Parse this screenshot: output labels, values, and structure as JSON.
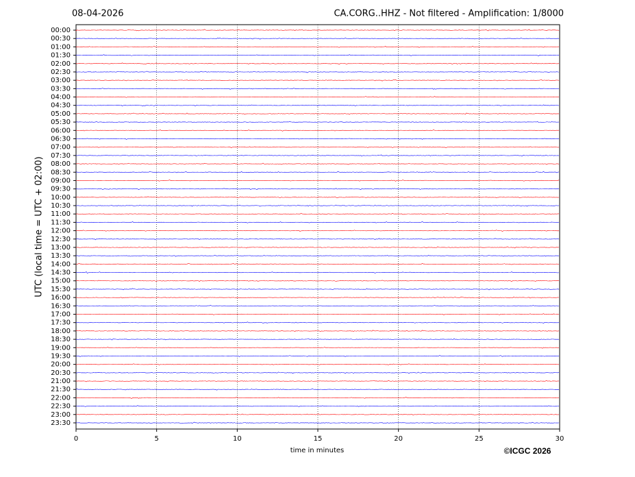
{
  "chart_data": {
    "type": "helicorder",
    "date_label": "08-04-2026",
    "title": "CA.CORG..HHZ - Not filtered - Amplification: 1/8000",
    "ylabel": "UTC (local time = UTC + 02:00)",
    "xlabel": "time in minutes",
    "copyright": "©ICGC 2026",
    "categories": [
      "00:00",
      "00:30",
      "01:00",
      "01:30",
      "02:00",
      "02:30",
      "03:00",
      "03:30",
      "04:00",
      "04:30",
      "05:00",
      "05:30",
      "06:00",
      "06:30",
      "07:00",
      "07:30",
      "08:00",
      "08:30",
      "09:00",
      "09:30",
      "10:00",
      "10:30",
      "11:00",
      "11:30",
      "12:00",
      "12:30",
      "13:00",
      "13:30",
      "14:00",
      "14:30",
      "15:00",
      "15:30",
      "16:00",
      "16:30",
      "17:00",
      "17:30",
      "18:00",
      "18:30",
      "19:00",
      "19:30",
      "20:00",
      "20:30",
      "21:00",
      "21:30",
      "22:00",
      "22:30",
      "23:00",
      "23:30"
    ],
    "colors": [
      "#ff0000",
      "#0000ff"
    ],
    "xlim": [
      0,
      30
    ],
    "xticks": [
      0,
      5,
      10,
      15,
      20,
      25,
      30
    ],
    "grid": true
  }
}
